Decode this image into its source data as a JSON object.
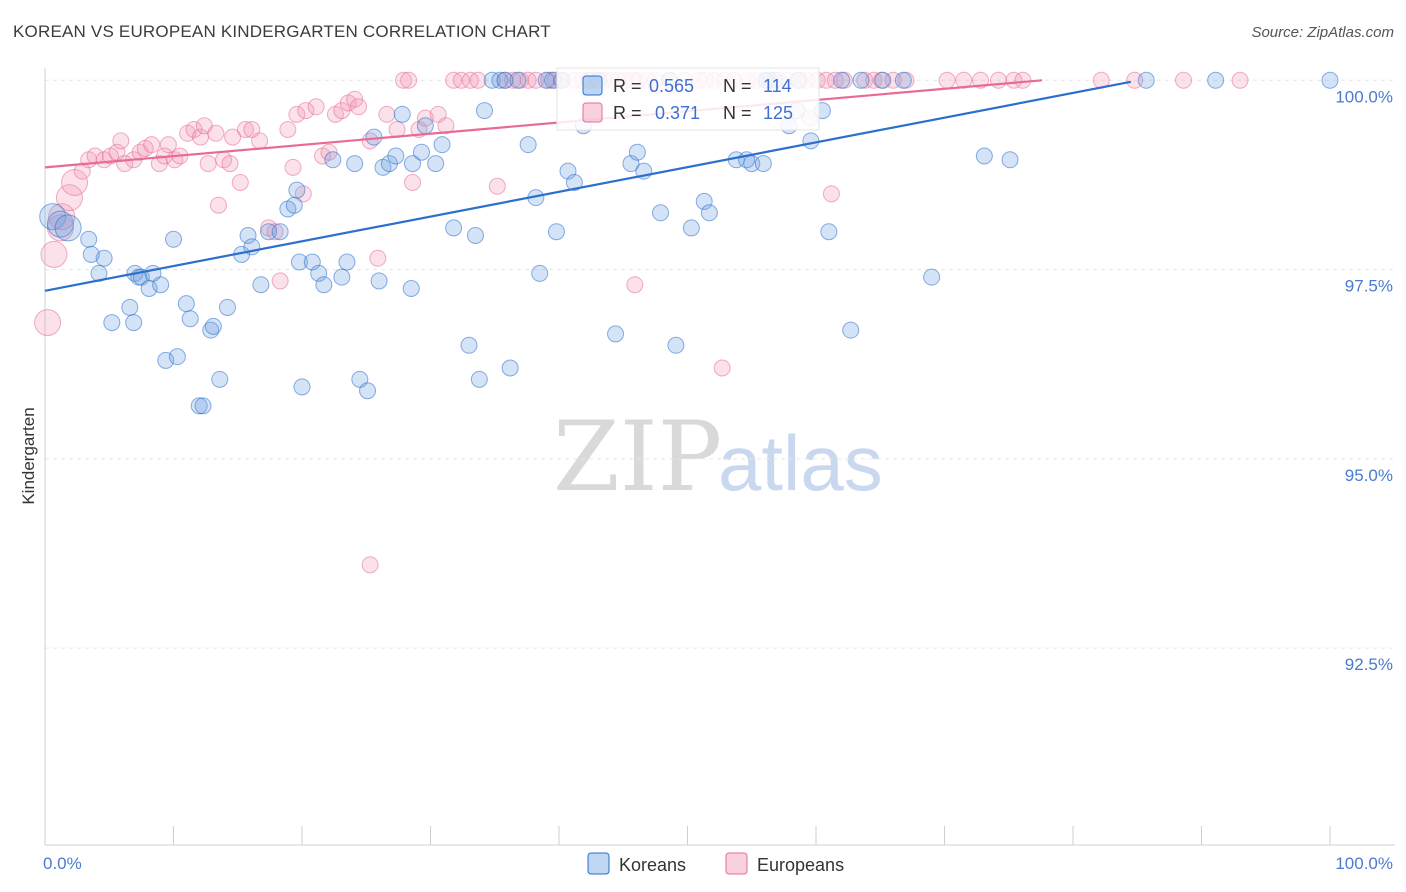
{
  "title": "KOREAN VS EUROPEAN KINDERGARTEN CORRELATION CHART",
  "source": "Source: ZipAtlas.com",
  "watermark": {
    "zip": "ZIP",
    "atlas": "atlas"
  },
  "colors": {
    "korean": "#6fa3e0",
    "european": "#f19ab5",
    "korean_line": "#2c6fcc",
    "european_line": "#e86b97",
    "tick_text": "#4a7bd0"
  },
  "stats": {
    "r_label": "R =",
    "n_label": "N =",
    "korean": {
      "r": "0.565",
      "n": "114"
    },
    "european": {
      "r": "0.371",
      "n": "125"
    }
  },
  "chart_data": {
    "type": "scatter",
    "title": "KOREAN VS EUROPEAN KINDERGARTEN CORRELATION CHART",
    "ylabel": "Kindergarten",
    "xlabel": "",
    "x_tick_labels": [
      "0.0%",
      "100.0%"
    ],
    "y_tick_labels": [
      "100.0%",
      "97.5%",
      "95.0%",
      "92.5%"
    ],
    "y_ticks": [
      100.0,
      97.5,
      95.0,
      92.5
    ],
    "xlim": [
      0,
      100
    ],
    "ylim": [
      89.9,
      100.4
    ],
    "grid": true,
    "legend_position": "bottom-center",
    "series": [
      {
        "name": "Koreans",
        "r": 0.565,
        "n": 114,
        "trend": [
          [
            0,
            97.22
          ],
          [
            84.5,
            99.98
          ]
        ],
        "points": [
          [
            0.6,
            98.2
          ],
          [
            1.2,
            98.1
          ],
          [
            1.8,
            98.05
          ],
          [
            3.4,
            97.9
          ],
          [
            4.6,
            97.65
          ],
          [
            3.6,
            97.7
          ],
          [
            4.2,
            97.45
          ],
          [
            7.0,
            97.45
          ],
          [
            6.6,
            97.0
          ],
          [
            5.2,
            96.8
          ],
          [
            6.9,
            96.8
          ],
          [
            7.3,
            97.4
          ],
          [
            7.5,
            97.4
          ],
          [
            8.1,
            97.25
          ],
          [
            8.4,
            97.45
          ],
          [
            9.0,
            97.3
          ],
          [
            9.4,
            96.3
          ],
          [
            10.3,
            96.35
          ],
          [
            10.0,
            97.9
          ],
          [
            11.0,
            97.05
          ],
          [
            11.3,
            96.85
          ],
          [
            12.0,
            95.7
          ],
          [
            12.3,
            95.7
          ],
          [
            12.9,
            96.7
          ],
          [
            13.1,
            96.75
          ],
          [
            13.6,
            96.05
          ],
          [
            14.2,
            97.0
          ],
          [
            15.3,
            97.7
          ],
          [
            15.8,
            97.95
          ],
          [
            16.1,
            97.8
          ],
          [
            16.8,
            97.3
          ],
          [
            17.4,
            98.0
          ],
          [
            18.3,
            98.0
          ],
          [
            18.9,
            98.3
          ],
          [
            19.4,
            98.35
          ],
          [
            19.6,
            98.55
          ],
          [
            19.8,
            97.6
          ],
          [
            20.0,
            95.95
          ],
          [
            20.8,
            97.6
          ],
          [
            21.3,
            97.45
          ],
          [
            21.7,
            97.3
          ],
          [
            22.4,
            98.95
          ],
          [
            23.1,
            97.4
          ],
          [
            23.5,
            97.6
          ],
          [
            24.1,
            98.9
          ],
          [
            24.5,
            96.05
          ],
          [
            25.1,
            95.9
          ],
          [
            25.6,
            99.25
          ],
          [
            26.3,
            98.85
          ],
          [
            26.0,
            97.35
          ],
          [
            26.8,
            98.9
          ],
          [
            27.3,
            99.0
          ],
          [
            27.8,
            99.55
          ],
          [
            28.5,
            97.25
          ],
          [
            28.6,
            98.9
          ],
          [
            29.3,
            99.05
          ],
          [
            29.6,
            99.4
          ],
          [
            30.4,
            98.9
          ],
          [
            30.9,
            99.15
          ],
          [
            31.8,
            98.05
          ],
          [
            33.0,
            96.5
          ],
          [
            33.5,
            97.95
          ],
          [
            33.8,
            96.05
          ],
          [
            34.2,
            99.6
          ],
          [
            34.8,
            100.0
          ],
          [
            35.4,
            100.0
          ],
          [
            35.8,
            100.0
          ],
          [
            36.2,
            96.2
          ],
          [
            36.8,
            100.0
          ],
          [
            37.6,
            99.15
          ],
          [
            38.2,
            98.45
          ],
          [
            38.5,
            97.45
          ],
          [
            39.0,
            100.0
          ],
          [
            39.5,
            100.0
          ],
          [
            39.8,
            98.0
          ],
          [
            40.7,
            98.8
          ],
          [
            41.2,
            98.65
          ],
          [
            41.9,
            99.4
          ],
          [
            42.4,
            100.0
          ],
          [
            43.1,
            100.0
          ],
          [
            40.2,
            100.0
          ],
          [
            44.4,
            96.65
          ],
          [
            45.6,
            98.9
          ],
          [
            46.1,
            99.05
          ],
          [
            46.6,
            98.8
          ],
          [
            47.9,
            98.25
          ],
          [
            49.1,
            96.5
          ],
          [
            48.6,
            100.0
          ],
          [
            50.3,
            98.05
          ],
          [
            51.3,
            98.4
          ],
          [
            51.7,
            98.25
          ],
          [
            53.8,
            98.95
          ],
          [
            55.0,
            98.9
          ],
          [
            54.6,
            98.95
          ],
          [
            55.9,
            98.9
          ],
          [
            57.9,
            99.4
          ],
          [
            58.5,
            99.6
          ],
          [
            59.6,
            99.2
          ],
          [
            56.8,
            100.0
          ],
          [
            60.5,
            99.6
          ],
          [
            62.0,
            100.0
          ],
          [
            56.4,
            100.0
          ],
          [
            56.1,
            100.0
          ],
          [
            58.6,
            100.0
          ],
          [
            62.7,
            96.7
          ],
          [
            61.0,
            98.0
          ],
          [
            63.5,
            100.0
          ],
          [
            65.2,
            100.0
          ],
          [
            66.8,
            100.0
          ],
          [
            69.0,
            97.4
          ],
          [
            73.1,
            99.0
          ],
          [
            75.1,
            98.95
          ],
          [
            85.7,
            100.0
          ],
          [
            91.1,
            100.0
          ],
          [
            100.0,
            100.0
          ]
        ]
      },
      {
        "name": "Europeans",
        "r": 0.371,
        "n": 125,
        "trend": [
          [
            0,
            98.85
          ],
          [
            77.6,
            100.0
          ]
        ],
        "points": [
          [
            0.2,
            96.8
          ],
          [
            0.7,
            97.7
          ],
          [
            1.2,
            98.05
          ],
          [
            1.3,
            98.2
          ],
          [
            1.9,
            98.45
          ],
          [
            2.3,
            98.65
          ],
          [
            2.9,
            98.8
          ],
          [
            3.4,
            98.95
          ],
          [
            3.9,
            99.0
          ],
          [
            4.6,
            98.95
          ],
          [
            5.1,
            99.0
          ],
          [
            5.6,
            99.05
          ],
          [
            5.9,
            99.2
          ],
          [
            6.2,
            98.9
          ],
          [
            6.9,
            98.95
          ],
          [
            7.4,
            99.05
          ],
          [
            7.8,
            99.1
          ],
          [
            8.3,
            99.15
          ],
          [
            8.9,
            98.9
          ],
          [
            9.3,
            99.0
          ],
          [
            9.6,
            99.15
          ],
          [
            10.1,
            98.95
          ],
          [
            10.5,
            99.0
          ],
          [
            11.1,
            99.3
          ],
          [
            11.6,
            99.35
          ],
          [
            12.1,
            99.25
          ],
          [
            12.4,
            99.4
          ],
          [
            12.7,
            98.9
          ],
          [
            13.3,
            99.3
          ],
          [
            13.5,
            98.35
          ],
          [
            13.9,
            98.95
          ],
          [
            14.6,
            99.25
          ],
          [
            14.4,
            98.9
          ],
          [
            15.2,
            98.65
          ],
          [
            15.6,
            99.35
          ],
          [
            16.1,
            99.35
          ],
          [
            16.7,
            99.2
          ],
          [
            17.4,
            98.05
          ],
          [
            17.9,
            98.0
          ],
          [
            18.3,
            97.35
          ],
          [
            18.9,
            99.35
          ],
          [
            19.3,
            98.85
          ],
          [
            20.1,
            98.5
          ],
          [
            19.6,
            99.55
          ],
          [
            20.3,
            99.6
          ],
          [
            21.1,
            99.65
          ],
          [
            21.6,
            99.0
          ],
          [
            22.1,
            99.05
          ],
          [
            22.6,
            99.55
          ],
          [
            23.1,
            99.6
          ],
          [
            23.6,
            99.7
          ],
          [
            24.1,
            99.75
          ],
          [
            24.4,
            99.65
          ],
          [
            25.3,
            99.2
          ],
          [
            25.9,
            97.65
          ],
          [
            26.6,
            99.55
          ],
          [
            27.4,
            99.35
          ],
          [
            27.9,
            100.0
          ],
          [
            28.3,
            100.0
          ],
          [
            28.6,
            98.65
          ],
          [
            29.1,
            99.35
          ],
          [
            29.6,
            99.5
          ],
          [
            30.6,
            99.55
          ],
          [
            31.2,
            99.4
          ],
          [
            31.8,
            100.0
          ],
          [
            32.4,
            100.0
          ],
          [
            33.1,
            100.0
          ],
          [
            33.7,
            100.0
          ],
          [
            35.2,
            98.6
          ],
          [
            35.8,
            100.0
          ],
          [
            36.4,
            100.0
          ],
          [
            37.0,
            100.0
          ],
          [
            37.6,
            100.0
          ],
          [
            38.2,
            100.0
          ],
          [
            39.2,
            100.0
          ],
          [
            39.7,
            100.0
          ],
          [
            40.3,
            100.0
          ],
          [
            41.2,
            100.0
          ],
          [
            41.8,
            100.0
          ],
          [
            42.3,
            100.0
          ],
          [
            42.9,
            100.0
          ],
          [
            43.5,
            100.0
          ],
          [
            44.1,
            100.0
          ],
          [
            44.6,
            100.0
          ],
          [
            45.2,
            100.0
          ],
          [
            45.8,
            100.0
          ],
          [
            46.2,
            100.0
          ],
          [
            46.9,
            100.0
          ],
          [
            47.5,
            100.0
          ],
          [
            48.6,
            100.0
          ],
          [
            49.8,
            100.0
          ],
          [
            50.9,
            100.0
          ],
          [
            51.4,
            100.0
          ],
          [
            52.1,
            100.0
          ],
          [
            52.9,
            100.0
          ],
          [
            53.6,
            100.0
          ],
          [
            54.7,
            100.0
          ],
          [
            55.4,
            100.0
          ],
          [
            56.2,
            100.0
          ],
          [
            57.1,
            100.0
          ],
          [
            57.8,
            100.0
          ],
          [
            58.7,
            100.0
          ],
          [
            59.3,
            100.0
          ],
          [
            60.1,
            100.0
          ],
          [
            60.8,
            100.0
          ],
          [
            61.5,
            100.0
          ],
          [
            62.2,
            100.0
          ],
          [
            63.8,
            100.0
          ],
          [
            64.5,
            100.0
          ],
          [
            65.1,
            100.0
          ],
          [
            66.0,
            100.0
          ],
          [
            67.0,
            100.0
          ],
          [
            70.2,
            100.0
          ],
          [
            71.5,
            100.0
          ],
          [
            72.8,
            100.0
          ],
          [
            74.2,
            100.0
          ],
          [
            75.4,
            100.0
          ],
          [
            76.1,
            100.0
          ],
          [
            82.2,
            100.0
          ],
          [
            84.8,
            100.0
          ],
          [
            88.6,
            100.0
          ],
          [
            93.0,
            100.0
          ],
          [
            25.3,
            93.6
          ],
          [
            45.9,
            97.3
          ],
          [
            52.7,
            96.2
          ],
          [
            59.5,
            99.5
          ],
          [
            61.2,
            98.5
          ]
        ]
      }
    ]
  }
}
